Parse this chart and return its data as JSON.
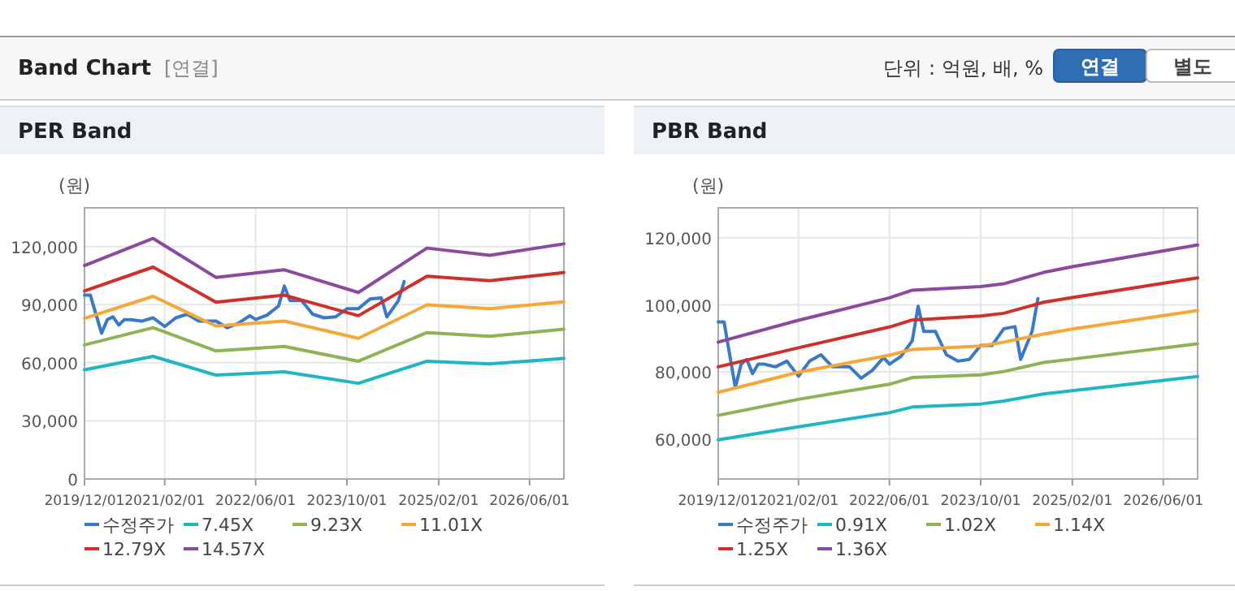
{
  "chart_data": [
    {
      "type": "other",
      "title": "Band Chart",
      "subtitle": "[연결]",
      "annotations": [
        "단위 : 억원, 배, %",
        "연결",
        "별도"
      ]
    },
    {
      "type": "line",
      "title": "PER Band",
      "ylabel": "(원)",
      "grid": true,
      "legend": "bottom",
      "xlim": [
        "2019-12-01",
        "2026-12-01"
      ],
      "ylim": [
        0,
        140000
      ],
      "xticks": [
        {
          "value": "2019-12-01",
          "label": "2019/12/01"
        },
        {
          "value": "2021-02-01",
          "label": "2021/02/01"
        },
        {
          "value": "2022-06-01",
          "label": "2022/06/01"
        },
        {
          "value": "2023-10-01",
          "label": "2023/10/01"
        },
        {
          "value": "2025-02-01",
          "label": "2025/02/01"
        },
        {
          "value": "2026-06-01",
          "label": "2026/06/01"
        }
      ],
      "yticks": [
        0,
        {
          "value": 30000,
          "label": "30,000"
        },
        {
          "value": 60000,
          "label": "60,000"
        },
        {
          "value": 90000,
          "label": "90,000"
        },
        {
          "value": 120000,
          "label": "120,000"
        }
      ],
      "series": [
        {
          "name": "수정주가",
          "color": "#3a78c9",
          "x": [
            "2019-12",
            "2020-01",
            "2020-03",
            "2020-04",
            "2020-05",
            "2020-06",
            "2020-07",
            "2020-08",
            "2020-10",
            "2020-12",
            "2021-02",
            "2021-04",
            "2021-06",
            "2021-08",
            "2021-11",
            "2022-01",
            "2022-03",
            "2022-05",
            "2022-06",
            "2022-08",
            "2022-10",
            "2022-11",
            "2022-12",
            "2023-02",
            "2023-04",
            "2023-06",
            "2023-08",
            "2023-10",
            "2023-12",
            "2024-02",
            "2024-04",
            "2024-05",
            "2024-07",
            "2024-08"
          ],
          "values": [
            94900,
            94900,
            75300,
            82300,
            83700,
            79500,
            82300,
            82300,
            81500,
            83200,
            78700,
            83200,
            85100,
            81500,
            81500,
            78100,
            80400,
            84300,
            82300,
            84600,
            89300,
            99600,
            92100,
            92100,
            85100,
            83200,
            83700,
            87900,
            87900,
            92900,
            93500,
            83700,
            92100,
            101900
          ]
        },
        {
          "name": "7.45X",
          "color": "#1fb5c4",
          "x": [
            "2019-12",
            "2020-12",
            "2021-11",
            "2022-11",
            "2023-12",
            "2024-12",
            "2025-11",
            "2026-12"
          ],
          "values": [
            56400,
            63300,
            53600,
            55300,
            49400,
            60800,
            59400,
            62200
          ]
        },
        {
          "name": "9.23X",
          "color": "#8db354",
          "x": [
            "2019-12",
            "2020-12",
            "2021-11",
            "2022-11",
            "2023-12",
            "2024-12",
            "2025-11",
            "2026-12"
          ],
          "values": [
            69200,
            78100,
            66100,
            68400,
            60800,
            75600,
            73700,
            77300
          ]
        },
        {
          "name": "11.01X",
          "color": "#f5a838",
          "x": [
            "2019-12",
            "2020-12",
            "2021-11",
            "2022-11",
            "2023-12",
            "2024-12",
            "2025-11",
            "2026-12"
          ],
          "values": [
            82900,
            94300,
            79000,
            81500,
            72600,
            89900,
            87900,
            91500
          ]
        },
        {
          "name": "12.79X",
          "color": "#d12f2a",
          "x": [
            "2019-12",
            "2020-12",
            "2021-11",
            "2022-11",
            "2023-12",
            "2024-12",
            "2025-11",
            "2026-12"
          ],
          "values": [
            97100,
            109400,
            91300,
            94900,
            84300,
            104700,
            102400,
            106600
          ]
        },
        {
          "name": "14.57X",
          "color": "#8c4a9f",
          "x": [
            "2019-12",
            "2020-12",
            "2021-11",
            "2022-11",
            "2023-12",
            "2024-12",
            "2025-11",
            "2026-12"
          ],
          "values": [
            110200,
            124200,
            104100,
            108000,
            96300,
            119200,
            115500,
            121400
          ]
        }
      ]
    },
    {
      "type": "line",
      "title": "PBR Band",
      "ylabel": "(원)",
      "grid": true,
      "legend": "bottom",
      "xlim": [
        "2019-12-01",
        "2026-12-01"
      ],
      "ylim": [
        48000,
        129000
      ],
      "xticks": [
        {
          "value": "2019-12-01",
          "label": "2019/12/01"
        },
        {
          "value": "2021-02-01",
          "label": "2021/02/01"
        },
        {
          "value": "2022-06-01",
          "label": "2022/06/01"
        },
        {
          "value": "2023-10-01",
          "label": "2023/10/01"
        },
        {
          "value": "2025-02-01",
          "label": "2025/02/01"
        },
        {
          "value": "2026-06-01",
          "label": "2026/06/01"
        }
      ],
      "yticks": [
        {
          "value": 60000,
          "label": "60,000"
        },
        {
          "value": 80000,
          "label": "80,000"
        },
        {
          "value": 100000,
          "label": "100,000"
        },
        {
          "value": 120000,
          "label": "120,000"
        }
      ],
      "series": [
        {
          "name": "수정주가",
          "color": "#3a78c9",
          "x": [
            "2019-12",
            "2020-01",
            "2020-03",
            "2020-04",
            "2020-05",
            "2020-06",
            "2020-07",
            "2020-08",
            "2020-10",
            "2020-12",
            "2021-02",
            "2021-04",
            "2021-06",
            "2021-08",
            "2021-11",
            "2022-01",
            "2022-03",
            "2022-05",
            "2022-06",
            "2022-08",
            "2022-10",
            "2022-11",
            "2022-12",
            "2023-02",
            "2023-04",
            "2023-06",
            "2023-08",
            "2023-10",
            "2023-12",
            "2024-02",
            "2024-04",
            "2024-05",
            "2024-07",
            "2024-08"
          ],
          "values": [
            94900,
            94900,
            75300,
            82300,
            83700,
            79500,
            82300,
            82300,
            81500,
            83200,
            78700,
            83200,
            85100,
            81500,
            81500,
            78100,
            80400,
            84300,
            82300,
            84600,
            89300,
            99600,
            92100,
            92100,
            85100,
            83200,
            83700,
            87900,
            87900,
            92900,
            93500,
            83700,
            92100,
            101900
          ]
        },
        {
          "name": "0.91X",
          "color": "#1fb5c4",
          "x": [
            "2019-12",
            "2021-02",
            "2022-06",
            "2022-10",
            "2023-10",
            "2024-02",
            "2024-09",
            "2025-02",
            "2026-12"
          ],
          "values": [
            59700,
            63600,
            67800,
            69500,
            70400,
            71300,
            73400,
            74400,
            78600
          ]
        },
        {
          "name": "1.02X",
          "color": "#8db354",
          "x": [
            "2019-12",
            "2021-02",
            "2022-06",
            "2022-10",
            "2023-10",
            "2024-02",
            "2024-09",
            "2025-02",
            "2026-12"
          ],
          "values": [
            67000,
            71800,
            76300,
            78300,
            79100,
            80100,
            82800,
            83800,
            88400
          ]
        },
        {
          "name": "1.14X",
          "color": "#f5a838",
          "x": [
            "2019-12",
            "2021-02",
            "2022-06",
            "2022-10",
            "2023-10",
            "2024-02",
            "2024-09",
            "2025-02",
            "2026-12"
          ],
          "values": [
            73900,
            79900,
            85000,
            86700,
            87700,
            88900,
            91300,
            92800,
            98300
          ]
        },
        {
          "name": "1.25X",
          "color": "#d12f2a",
          "x": [
            "2019-12",
            "2021-02",
            "2022-06",
            "2022-10",
            "2023-10",
            "2024-02",
            "2024-09",
            "2025-02",
            "2026-12"
          ],
          "values": [
            81500,
            87200,
            93400,
            95500,
            96700,
            97500,
            100800,
            102200,
            108100
          ]
        },
        {
          "name": "1.36X",
          "color": "#8c4a9f",
          "x": [
            "2019-12",
            "2021-02",
            "2022-06",
            "2022-10",
            "2023-10",
            "2024-02",
            "2024-09",
            "2025-02",
            "2026-12"
          ],
          "values": [
            88900,
            95400,
            102100,
            104400,
            105500,
            106300,
            109700,
            111400,
            117900
          ]
        }
      ]
    }
  ]
}
